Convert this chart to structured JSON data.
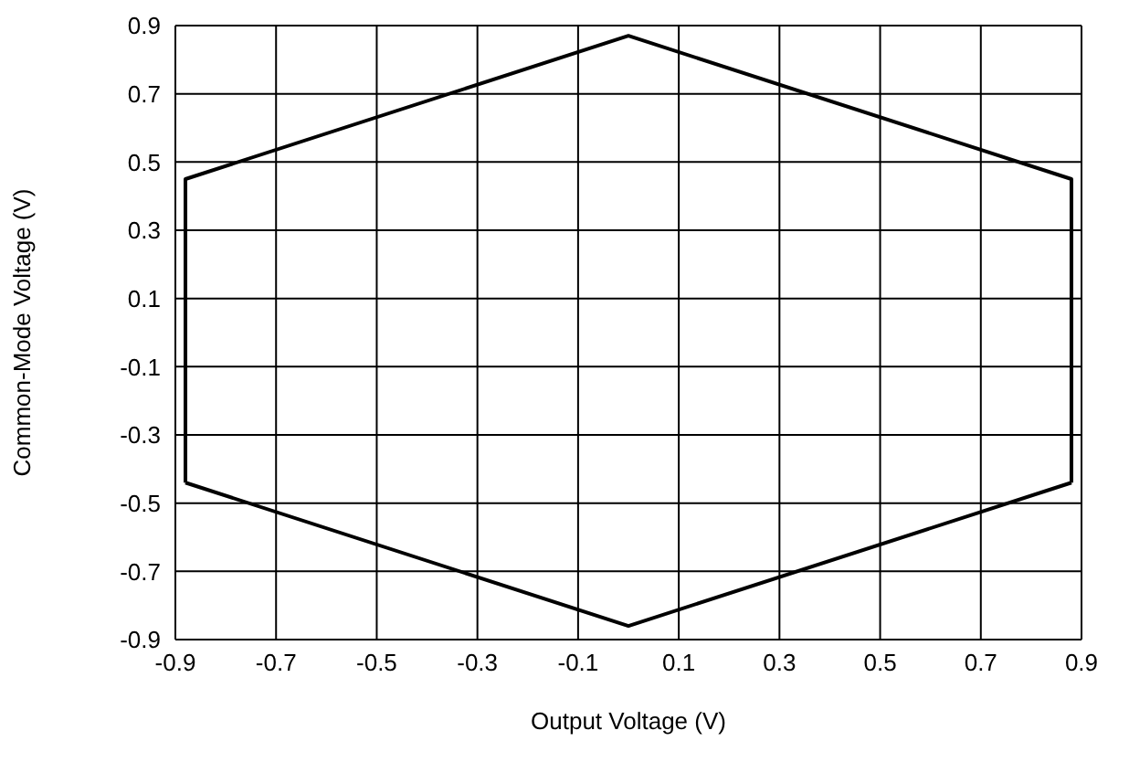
{
  "chart_data": {
    "type": "line",
    "xlabel": "Output Voltage (V)",
    "ylabel": "Common-Mode Voltage (V)",
    "series": [
      {
        "color": "#000000",
        "x": [
          -0.88,
          -0.88,
          0,
          0.88,
          0.88
        ],
        "values": [
          -0.44,
          0.45,
          0.87,
          0.45,
          -0.44
        ]
      },
      {
        "color": "#000000",
        "x": [
          -0.88,
          0,
          0.88
        ],
        "values": [
          -0.44,
          -0.86,
          -0.44
        ]
      }
    ],
    "xlim": [
      -0.9,
      0.9
    ],
    "xticks": [
      -0.9,
      -0.7,
      -0.5,
      -0.3,
      -0.1,
      0.1,
      0.3,
      0.5,
      0.7,
      0.9
    ],
    "ylim": [
      -0.9,
      0.9
    ],
    "yticks": [
      -0.9,
      -0.7,
      -0.5,
      -0.3,
      -0.1,
      0.1,
      0.3,
      0.5,
      0.7,
      0.9
    ],
    "grid": true,
    "marker": "none",
    "line_style": "solid"
  }
}
